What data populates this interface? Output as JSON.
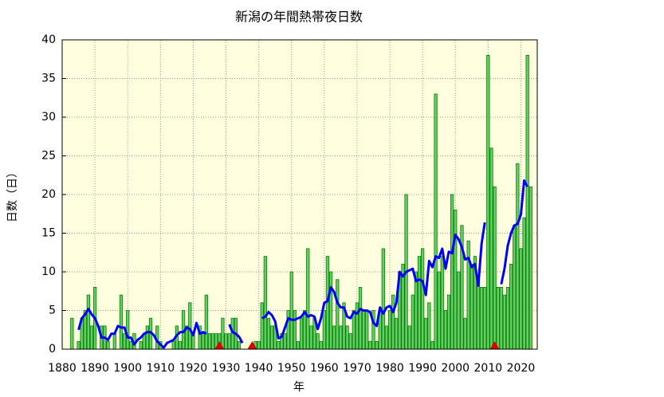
{
  "chart_data": {
    "type": "bar",
    "title": "新潟の年間熱帯夜日数",
    "xlabel": "年",
    "ylabel": "日数（日）",
    "xlim": [
      1880,
      2025
    ],
    "ylim": [
      0,
      40
    ],
    "xticks": [
      1880,
      1890,
      1900,
      1910,
      1920,
      1930,
      1940,
      1950,
      1960,
      1970,
      1980,
      1990,
      2000,
      2010,
      2020
    ],
    "yticks": [
      0,
      5,
      10,
      15,
      20,
      25,
      30,
      35,
      40
    ],
    "grid": true,
    "background": "#ffffe0",
    "color": "#66cc66",
    "edgecolor": "#008000",
    "x": [
      1883,
      1884,
      1885,
      1886,
      1887,
      1888,
      1889,
      1890,
      1891,
      1892,
      1893,
      1894,
      1895,
      1896,
      1897,
      1898,
      1899,
      1900,
      1901,
      1902,
      1903,
      1904,
      1905,
      1906,
      1907,
      1908,
      1909,
      1910,
      1911,
      1912,
      1913,
      1914,
      1915,
      1916,
      1917,
      1918,
      1919,
      1920,
      1921,
      1922,
      1923,
      1924,
      1925,
      1926,
      1927,
      1928,
      1929,
      1930,
      1931,
      1932,
      1933,
      1934,
      1935,
      1936,
      1937,
      1938,
      1939,
      1940,
      1941,
      1942,
      1943,
      1944,
      1945,
      1946,
      1947,
      1948,
      1949,
      1950,
      1951,
      1952,
      1953,
      1954,
      1955,
      1956,
      1957,
      1958,
      1959,
      1960,
      1961,
      1962,
      1963,
      1964,
      1965,
      1966,
      1967,
      1968,
      1969,
      1970,
      1971,
      1972,
      1973,
      1974,
      1975,
      1976,
      1977,
      1978,
      1979,
      1980,
      1981,
      1982,
      1983,
      1984,
      1985,
      1986,
      1987,
      1988,
      1989,
      1990,
      1991,
      1992,
      1993,
      1994,
      1995,
      1996,
      1997,
      1998,
      1999,
      2000,
      2001,
      2002,
      2003,
      2004,
      2005,
      2006,
      2007,
      2008,
      2009,
      2010,
      2011,
      2012,
      2013,
      2014,
      2015,
      2016,
      2017,
      2018,
      2019,
      2020,
      2021,
      2022,
      2023
    ],
    "values": [
      4,
      0,
      1,
      4,
      5,
      7,
      3,
      8,
      0,
      3,
      3,
      1,
      0,
      2,
      0,
      7,
      2,
      5,
      1,
      2,
      0,
      1,
      2,
      3,
      4,
      0,
      3,
      1,
      0,
      0,
      0,
      1,
      3,
      1,
      5,
      3,
      6,
      2,
      0,
      3,
      2,
      7,
      2,
      2,
      2,
      2,
      4,
      2,
      2,
      4,
      4,
      1,
      0,
      0,
      0,
      0,
      1,
      1,
      6,
      12,
      4,
      3,
      3,
      1,
      2,
      2,
      5,
      10,
      5,
      1,
      4,
      5,
      13,
      3,
      4,
      2,
      1,
      5,
      12,
      10,
      3,
      9,
      3,
      6,
      3,
      2,
      5,
      6,
      8,
      5,
      5,
      1,
      5,
      1,
      5,
      13,
      3,
      5,
      7,
      4,
      10,
      11,
      20,
      3,
      7,
      10,
      12,
      13,
      4,
      6,
      1,
      33,
      10,
      12,
      5,
      7,
      20,
      18,
      10,
      16,
      4,
      14,
      11,
      12,
      9,
      8,
      8,
      38,
      26,
      21,
      8,
      8,
      7,
      8,
      11,
      16,
      24,
      13,
      17,
      38,
      21
    ],
    "line": {
      "color": "#0000ff",
      "x": [
        1885,
        1886,
        1887,
        1888,
        1889,
        1890,
        1891,
        1892,
        1893,
        1894,
        1895,
        1896,
        1897,
        1898,
        1899,
        1900,
        1901,
        1902,
        1903,
        1904,
        1905,
        1906,
        1907,
        1908,
        1909,
        1910,
        1911,
        1912,
        1913,
        1914,
        1915,
        1916,
        1917,
        1918,
        1919,
        1920,
        1921,
        1922,
        1923,
        1924,
        1925,
        1926,
        1927,
        1928,
        1929,
        1930,
        1931,
        1932,
        1933,
        1934,
        1935,
        1936,
        1937,
        1938,
        1939,
        1940,
        1941,
        1942,
        1943,
        1944,
        1945,
        1946,
        1947,
        1948,
        1949,
        1950,
        1951,
        1952,
        1953,
        1954,
        1955,
        1956,
        1957,
        1958,
        1959,
        1960,
        1961,
        1962,
        1963,
        1964,
        1965,
        1966,
        1967,
        1968,
        1969,
        1970,
        1971,
        1972,
        1973,
        1974,
        1975,
        1976,
        1977,
        1978,
        1979,
        1980,
        1981,
        1982,
        1983,
        1984,
        1985,
        1986,
        1987,
        1988,
        1989,
        1990,
        1991,
        1992,
        1993,
        1994,
        1995,
        1996,
        1997,
        1998,
        1999,
        2000,
        2001,
        2002,
        2003,
        2004,
        2005,
        2006,
        2007,
        2008,
        2009,
        2010,
        2011,
        2012,
        2013,
        2014,
        2015,
        2016,
        2017,
        2018,
        2019,
        2020,
        2021,
        2022
      ],
      "values": [
        2.5,
        4,
        4.5,
        5.2,
        4.5,
        4,
        3,
        1.5,
        1.5,
        1.2,
        2,
        2,
        3,
        2.8,
        2.8,
        1.5,
        1.5,
        0.6,
        1.2,
        1.5,
        2,
        2.2,
        2.2,
        1.8,
        1,
        0.6,
        0.2,
        0.8,
        1,
        1.2,
        1.8,
        2.2,
        2.2,
        2.8,
        2.6,
        1.8,
        3.4,
        2,
        2.2,
        2,
        null,
        null,
        null,
        null,
        null,
        null,
        3.2,
        2.2,
        2,
        1.6,
        0.8,
        null,
        null,
        null,
        null,
        null,
        4,
        4.2,
        4.8,
        4.4,
        3.6,
        1.4,
        1.6,
        2.8,
        4,
        3.8,
        3.8,
        4,
        4.2,
        4.8,
        4.2,
        4.4,
        4.2,
        2.6,
        4,
        6,
        6.2,
        8,
        7.4,
        6,
        5.4,
        5.4,
        4.2,
        4,
        4.8,
        4.6,
        5.2,
        5,
        5,
        4.8,
        3.4,
        3,
        5.4,
        4.6,
        5.4,
        5.6,
        4.8,
        6,
        10,
        9.4,
        10,
        10.2,
        10.4,
        8.8,
        9,
        8.8,
        7,
        11.4,
        10.6,
        12,
        11.8,
        13,
        10.4,
        12.6,
        12.4,
        14.8,
        14.2,
        13.2,
        11.6,
        11.8,
        10.6,
        11,
        8.2,
        13.6,
        16.4,
        null,
        null,
        null,
        null,
        8.4,
        10.4,
        13.4,
        15,
        16,
        16.2,
        17.4,
        21.8,
        21
      ]
    },
    "markers": {
      "color": "#dd0000",
      "x": [
        1928,
        1938,
        2012
      ],
      "values": [
        0,
        0,
        0
      ]
    }
  }
}
